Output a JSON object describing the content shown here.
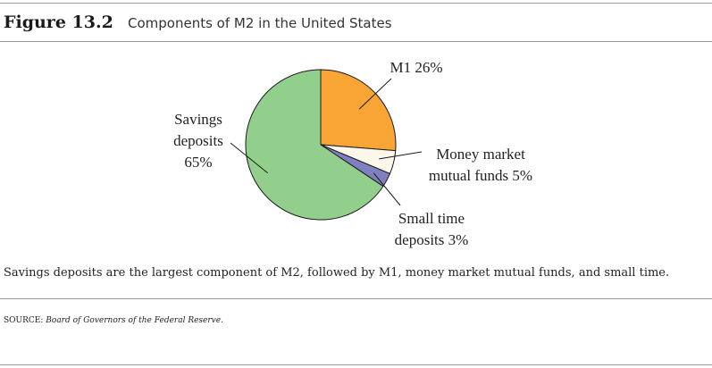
{
  "figure": {
    "label": "Figure 13.2",
    "title": "Components of M2 in the United States",
    "caption": "Savings deposits are the largest component of M2, followed by M1, money market mutual funds, and small time.",
    "source_prefix": "SOURCE:",
    "source_text": "Board of Governors of the Federal Reserve."
  },
  "chart_data": {
    "type": "pie",
    "title": "",
    "slices": [
      {
        "label_lines": [
          "M1 26%"
        ],
        "value": 26,
        "color": "#f9a535"
      },
      {
        "label_lines": [
          "Money market",
          "mutual funds 5%"
        ],
        "value": 5,
        "color": "#fdf7ea"
      },
      {
        "label_lines": [
          "Small time",
          "deposits 3%"
        ],
        "value": 3,
        "color": "#7f80c0"
      },
      {
        "label_lines": [
          "Savings",
          "deposits",
          "65%"
        ],
        "value": 65,
        "color": "#92cf8d"
      }
    ]
  }
}
